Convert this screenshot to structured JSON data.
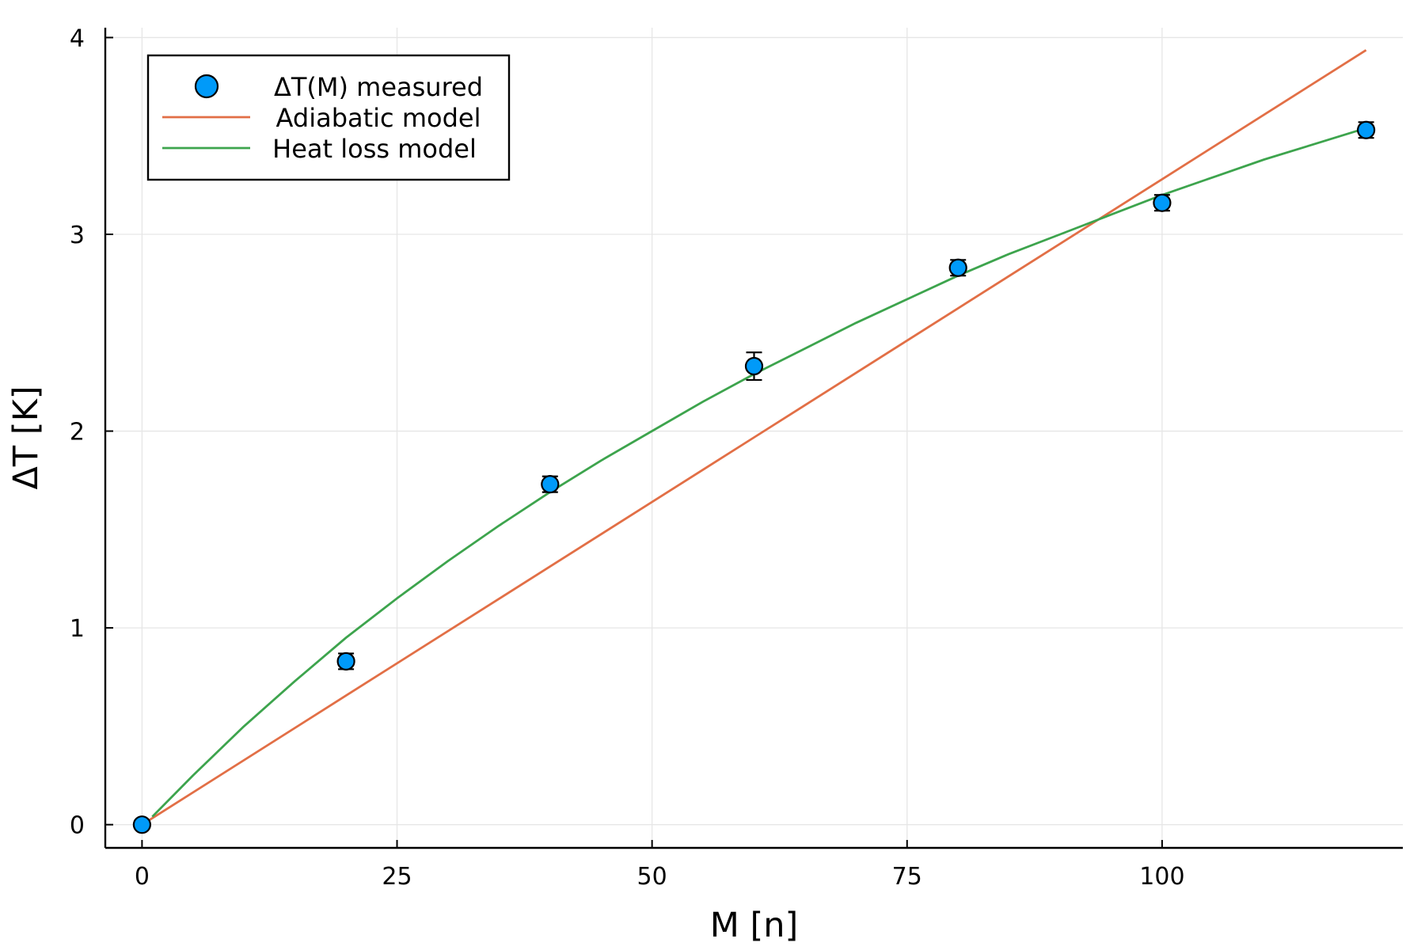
{
  "chart_data": {
    "type": "scatter",
    "title": "",
    "xlabel": "M [n]",
    "ylabel": "ΔT [K]",
    "xlim": [
      -3.6,
      123.6
    ],
    "ylim": [
      -0.118,
      4.05
    ],
    "xticks": [
      0,
      25,
      50,
      75,
      100
    ],
    "xtick_labels": [
      "0",
      "25",
      "50",
      "75",
      "100"
    ],
    "yticks": [
      0,
      1,
      2,
      3,
      4
    ],
    "ytick_labels": [
      "0",
      "1",
      "2",
      "3",
      "4"
    ],
    "grid": true,
    "legend_position": "top-left",
    "colors": {
      "measured": "#009af9",
      "adiabatic": "#e26f46",
      "heat_loss": "#3da44d",
      "grid": "#e6e6e6",
      "axis": "#000000"
    },
    "series": [
      {
        "name": "ΔT(M) measured",
        "kind": "scatter",
        "x": [
          0,
          20,
          40,
          60,
          80,
          100,
          120
        ],
        "y": [
          0.0,
          0.83,
          1.73,
          2.33,
          2.83,
          3.16,
          3.53
        ],
        "yerr": [
          0.02,
          0.04,
          0.04,
          0.07,
          0.04,
          0.04,
          0.04
        ]
      },
      {
        "name": "Adiabatic model",
        "kind": "line",
        "x": [
          0,
          20,
          40,
          60,
          80,
          100,
          120
        ],
        "y": [
          0.0,
          0.656,
          1.312,
          1.968,
          2.624,
          3.28,
          3.936
        ]
      },
      {
        "name": "Heat loss model",
        "kind": "line",
        "x": [
          1,
          5,
          10,
          15,
          20,
          25,
          30,
          35,
          40,
          45,
          50,
          55,
          60,
          65,
          70,
          75,
          80,
          85,
          90,
          95,
          100,
          105,
          110,
          115,
          120
        ],
        "y": [
          0.04,
          0.25,
          0.5,
          0.73,
          0.95,
          1.15,
          1.34,
          1.52,
          1.69,
          1.85,
          2.0,
          2.15,
          2.29,
          2.42,
          2.55,
          2.67,
          2.79,
          2.9,
          3.0,
          3.1,
          3.2,
          3.29,
          3.38,
          3.46,
          3.54
        ]
      }
    ]
  }
}
